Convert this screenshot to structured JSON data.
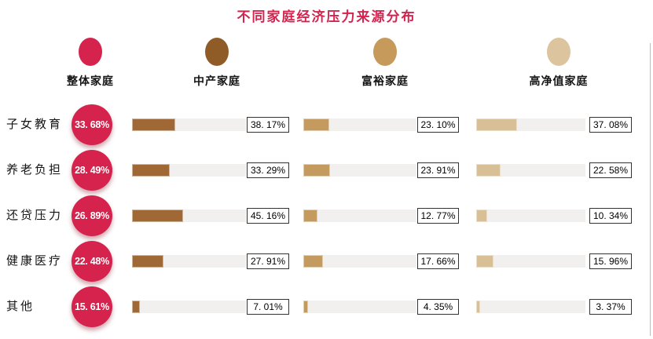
{
  "title": "不同家庭经济压力来源分布",
  "colors": {
    "accent_red": "#D5234E",
    "middle_brown": "#A06835",
    "wealthy_tan": "#C49A5E",
    "hnw_light_tan": "#D9BF95",
    "track_gray": "#F1F0EE",
    "box_border": "#333333"
  },
  "legend": {
    "items": [
      {
        "label": "整体家庭",
        "color": "#D5234E"
      },
      {
        "label": "中产家庭",
        "color": "#8F5C27"
      },
      {
        "label": "富裕家庭",
        "color": "#C59A5A"
      },
      {
        "label": "高净值家庭",
        "color": "#DCC49E"
      }
    ]
  },
  "rows": [
    {
      "label": "子女教育",
      "overall": {
        "display": "33. 68%",
        "value": 33.68
      },
      "middle": {
        "display": "38. 17%",
        "value": 38.17
      },
      "wealthy": {
        "display": "23. 10%",
        "value": 23.1
      },
      "hnw": {
        "display": "37. 08%",
        "value": 37.08
      }
    },
    {
      "label": "养老负担",
      "overall": {
        "display": "28. 49%",
        "value": 28.49
      },
      "middle": {
        "display": "33. 29%",
        "value": 33.29
      },
      "wealthy": {
        "display": "23. 91%",
        "value": 23.91
      },
      "hnw": {
        "display": "22. 58%",
        "value": 22.58
      }
    },
    {
      "label": "还贷压力",
      "overall": {
        "display": "26. 89%",
        "value": 26.89
      },
      "middle": {
        "display": "45. 16%",
        "value": 45.16
      },
      "wealthy": {
        "display": "12. 77%",
        "value": 12.77
      },
      "hnw": {
        "display": "10. 34%",
        "value": 10.34
      }
    },
    {
      "label": "健康医疗",
      "overall": {
        "display": "22. 48%",
        "value": 22.48
      },
      "middle": {
        "display": "27. 91%",
        "value": 27.91
      },
      "wealthy": {
        "display": "17. 66%",
        "value": 17.66
      },
      "hnw": {
        "display": "15. 96%",
        "value": 15.96
      }
    },
    {
      "label": "其他",
      "overall": {
        "display": "15. 61%",
        "value": 15.61
      },
      "middle": {
        "display": "7. 01%",
        "value": 7.01
      },
      "wealthy": {
        "display": "4. 35%",
        "value": 4.35
      },
      "hnw": {
        "display": "3. 37%",
        "value": 3.37
      }
    }
  ],
  "chart_data": {
    "type": "bar",
    "title": "不同家庭经济压力来源分布",
    "orientation": "horizontal",
    "categories": [
      "子女教育",
      "养老负担",
      "还贷压力",
      "健康医疗",
      "其他"
    ],
    "series": [
      {
        "name": "整体家庭",
        "style": "red circle badge",
        "values": [
          33.68,
          28.49,
          26.89,
          22.48,
          15.61
        ]
      },
      {
        "name": "中产家庭",
        "style": "brown bar",
        "values": [
          38.17,
          33.29,
          45.16,
          27.91,
          7.01
        ]
      },
      {
        "name": "富裕家庭",
        "style": "tan bar",
        "values": [
          23.1,
          23.91,
          12.77,
          17.66,
          4.35
        ]
      },
      {
        "name": "高净值家庭",
        "style": "light tan bar",
        "values": [
          37.08,
          22.58,
          10.34,
          15.96,
          3.37
        ]
      }
    ],
    "unit": "%",
    "value_range": [
      0,
      100
    ],
    "grid": false,
    "legend_position": "top",
    "value_labels": "boxed at end of each bar track"
  }
}
